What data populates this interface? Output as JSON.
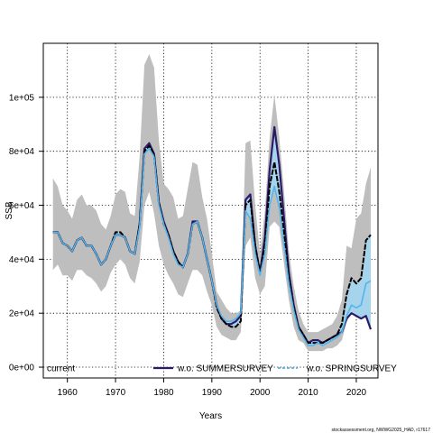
{
  "chart_data": {
    "type": "area",
    "xlabel": "Years",
    "ylabel": "SSB",
    "xlim": [
      1955,
      2024.5
    ],
    "ylim": [
      -4000,
      120000
    ],
    "x_ticks": [
      1960,
      1970,
      1980,
      1990,
      2000,
      2010,
      2020
    ],
    "y_ticks": [
      0,
      20000,
      40000,
      60000,
      80000,
      100000
    ],
    "y_tick_labels": [
      "0e+00",
      "2e+04",
      "4e+04",
      "6e+04",
      "8e+04",
      "1e+05"
    ],
    "grid": true,
    "legend_placement": "bottom",
    "credit": "stockassessment.org, NWWG2025_HAD, r17617",
    "years": [
      1957,
      1958,
      1959,
      1960,
      1961,
      1962,
      1963,
      1964,
      1965,
      1966,
      1967,
      1968,
      1969,
      1970,
      1971,
      1972,
      1973,
      1974,
      1975,
      1976,
      1977,
      1978,
      1979,
      1980,
      1981,
      1982,
      1983,
      1984,
      1985,
      1986,
      1987,
      1988,
      1989,
      1990,
      1991,
      1992,
      1993,
      1994,
      1995,
      1996,
      1997,
      1998,
      1999,
      2000,
      2001,
      2002,
      2003,
      2004,
      2005,
      2006,
      2007,
      2008,
      2009,
      2010,
      2011,
      2012,
      2013,
      2014,
      2015,
      2016,
      2017,
      2018,
      2019,
      2020,
      2021,
      2022,
      2023
    ],
    "band_upper": [
      70000,
      67000,
      60000,
      58000,
      55000,
      62000,
      64000,
      60000,
      60000,
      58000,
      53000,
      51000,
      56000,
      64000,
      66000,
      65000,
      57000,
      56000,
      78000,
      112000,
      116000,
      111000,
      84000,
      68000,
      66000,
      63000,
      55000,
      56000,
      66000,
      76000,
      75000,
      63000,
      55000,
      42000,
      28000,
      25000,
      22000,
      20000,
      20000,
      21000,
      83000,
      84000,
      60000,
      42000,
      58000,
      85000,
      101000,
      85000,
      65000,
      43000,
      30000,
      21000,
      16000,
      13000,
      13000,
      13000,
      14000,
      15000,
      16000,
      19000,
      25000,
      45000,
      44000,
      55000,
      57000,
      68000,
      74000
    ],
    "band_lower": [
      36000,
      38000,
      34000,
      34000,
      32000,
      36000,
      36000,
      34000,
      33000,
      31000,
      28000,
      30000,
      35000,
      38000,
      40000,
      38000,
      33000,
      31000,
      39000,
      60000,
      65000,
      57000,
      45000,
      38000,
      34000,
      31000,
      27000,
      26000,
      31000,
      36000,
      36000,
      34000,
      28000,
      23000,
      15000,
      12000,
      11000,
      10000,
      10000,
      13000,
      45000,
      48000,
      33000,
      27000,
      30000,
      52000,
      54000,
      52000,
      38000,
      25000,
      15000,
      10000,
      9000,
      6000,
      6000,
      6000,
      6000,
      7000,
      7000,
      8000,
      10000,
      17000,
      20000,
      22000,
      24000,
      28000,
      30000
    ],
    "series": [
      {
        "name": "current",
        "color": "#000000",
        "line_style": "solid",
        "values": [
          50000,
          50000,
          46000,
          45000,
          43000,
          47000,
          48000,
          45000,
          45000,
          42000,
          38000,
          40000,
          45000,
          50000,
          50000,
          48000,
          43000,
          42000,
          53000,
          80000,
          82000,
          79000,
          61000,
          53000,
          49000,
          43000,
          39000,
          37000,
          42000,
          53000,
          54000,
          48000,
          40000,
          32000,
          22000,
          18000,
          16000,
          15000,
          15000,
          17000,
          60000,
          62000,
          45000,
          35000,
          45000,
          67000,
          76000,
          65000,
          50000,
          33000,
          22000,
          15000,
          12000,
          9000,
          9000,
          9000,
          9000,
          10000,
          11000,
          12000,
          16000,
          27000,
          33000,
          31000,
          33000,
          47000,
          49000
        ]
      },
      {
        "name": "w.o. SUMMERSURVEY",
        "color": "#2d1a66",
        "line_style": "solid",
        "values": [
          50000,
          50000,
          46000,
          45000,
          43000,
          47000,
          48000,
          45000,
          45000,
          42000,
          38000,
          40000,
          45000,
          49000,
          49000,
          48000,
          43000,
          42000,
          53000,
          81000,
          83000,
          79000,
          61000,
          54000,
          49000,
          43000,
          39000,
          37000,
          42000,
          54000,
          54000,
          48000,
          40000,
          32000,
          23000,
          18000,
          16000,
          16000,
          17000,
          19000,
          62000,
          64000,
          45000,
          35000,
          48000,
          73000,
          89000,
          75000,
          55000,
          35000,
          23000,
          15000,
          12000,
          9000,
          10000,
          10000,
          9000,
          10000,
          11000,
          12000,
          13000,
          18000,
          20000,
          19000,
          18000,
          19000,
          14000
        ]
      },
      {
        "name": "w.o. SPRINGSURVEY",
        "color": "#56b4e9",
        "line_style": "dashed",
        "values": [
          50000,
          50000,
          46000,
          45000,
          43000,
          47000,
          48000,
          45000,
          45000,
          42000,
          38000,
          40000,
          45000,
          49000,
          49000,
          48000,
          43000,
          42000,
          52000,
          79000,
          81000,
          78000,
          60000,
          53000,
          48000,
          42000,
          38000,
          37000,
          42000,
          53000,
          54000,
          48000,
          40000,
          32000,
          23000,
          19000,
          17000,
          17000,
          18000,
          20000,
          58000,
          55000,
          42000,
          34000,
          42000,
          60000,
          67000,
          59000,
          45000,
          31000,
          21000,
          14000,
          11000,
          8000,
          8000,
          9000,
          8000,
          9000,
          10000,
          11000,
          13000,
          19000,
          23000,
          22000,
          23000,
          31000,
          32000
        ]
      }
    ],
    "band_color": "#bebebe",
    "blue_band_color": "#a6d4ec"
  }
}
